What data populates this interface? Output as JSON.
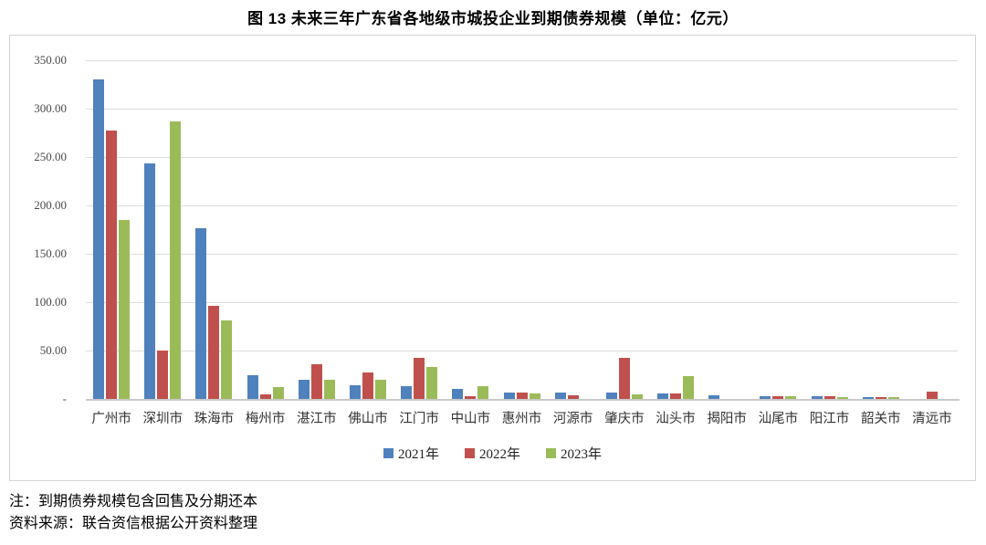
{
  "page": {
    "title": "图 13  未来三年广东省各地级市城投企业到期债券规模（单位：亿元）",
    "notes": [
      "注：到期债券规模包含回售及分期还本",
      "资料来源：联合资信根据公开资料整理"
    ]
  },
  "chart_data": {
    "type": "bar",
    "title": "图 13  未来三年广东省各地级市城投企业到期债券规模（单位：亿元）",
    "unit": "亿元",
    "categories": [
      "广州市",
      "深圳市",
      "珠海市",
      "梅州市",
      "湛江市",
      "佛山市",
      "江门市",
      "中山市",
      "惠州市",
      "河源市",
      "肇庆市",
      "汕头市",
      "揭阳市",
      "汕尾市",
      "阳江市",
      "韶关市",
      "清远市"
    ],
    "series": [
      {
        "name": "2021年",
        "color": "#4F81BD",
        "values": [
          330,
          243,
          176,
          25,
          20,
          14,
          13,
          10,
          7,
          7,
          7,
          6,
          4,
          3,
          3,
          2,
          0
        ]
      },
      {
        "name": "2022年",
        "color": "#C0504D",
        "values": [
          277,
          50,
          96,
          5,
          36,
          27,
          42,
          3,
          7,
          4,
          42,
          6,
          0,
          3,
          3,
          2,
          8
        ]
      },
      {
        "name": "2023年",
        "color": "#9BBB59",
        "values": [
          185,
          287,
          81,
          12,
          20,
          20,
          33,
          13,
          6,
          0,
          5,
          24,
          0,
          3,
          2,
          1.5,
          0
        ]
      }
    ],
    "ylim": [
      0,
      350
    ],
    "ytick_step": 50,
    "ytick_labels": [
      "-",
      "50.00",
      "100.00",
      "150.00",
      "200.00",
      "250.00",
      "300.00",
      "350.00"
    ],
    "grid": true,
    "legend_position": "bottom-center",
    "colors": {
      "gridline": "#DCDCDC",
      "axis_line": "#C9C9C9",
      "border": "#D4D4D4",
      "tick_text": "#4A4A4A"
    }
  }
}
